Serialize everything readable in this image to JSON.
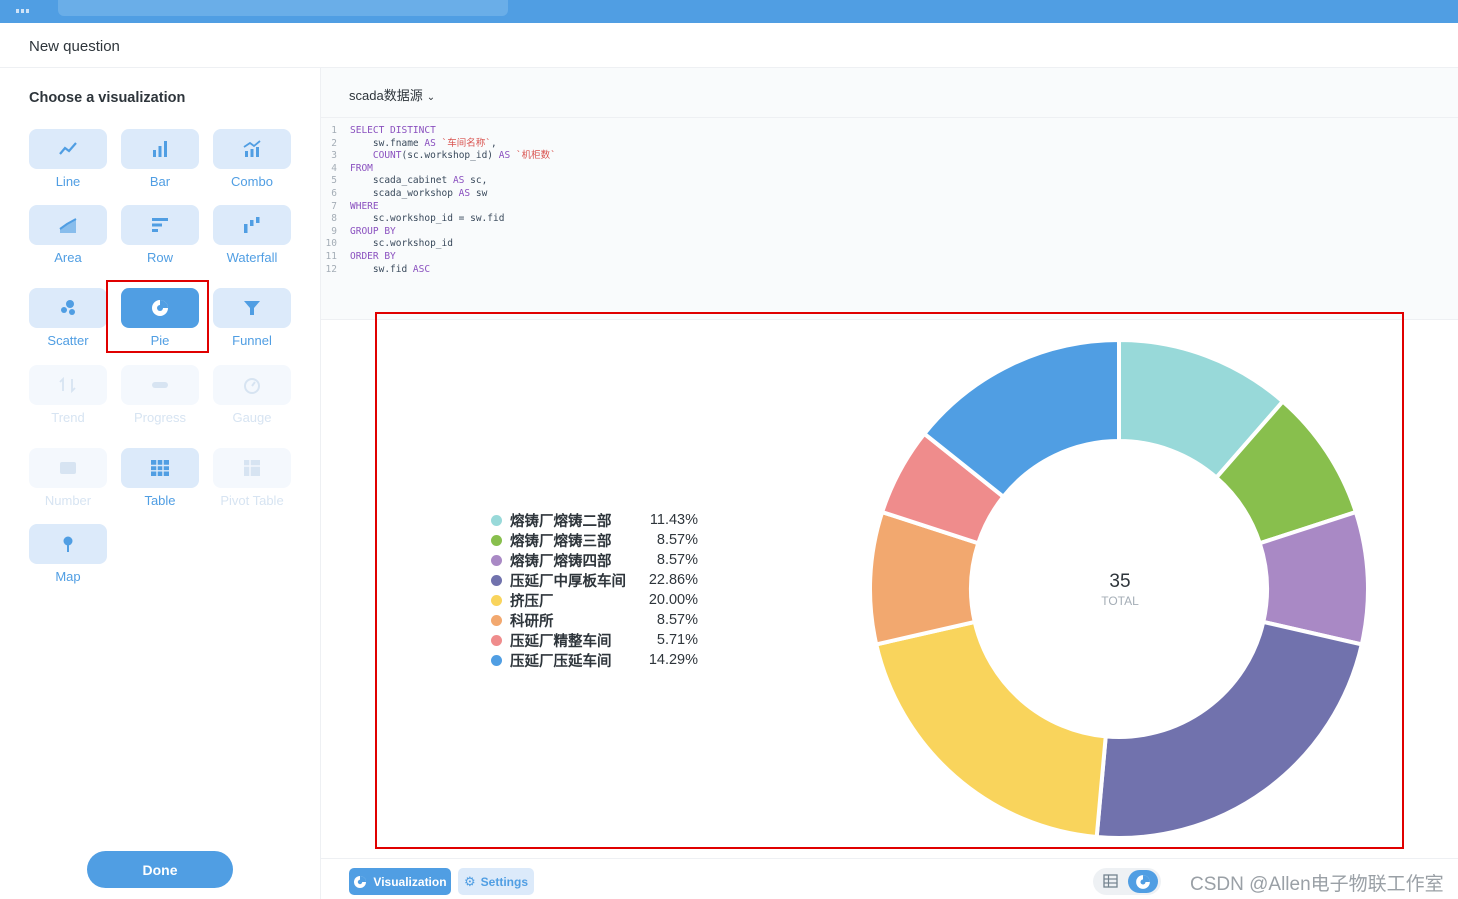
{
  "header": {
    "title": "New question"
  },
  "sidebar": {
    "heading": "Choose a visualization",
    "done_label": "Done",
    "items": [
      {
        "label": "Line",
        "icon": "line-chart-icon",
        "state": "enabled"
      },
      {
        "label": "Bar",
        "icon": "bar-chart-icon",
        "state": "enabled"
      },
      {
        "label": "Combo",
        "icon": "combo-chart-icon",
        "state": "enabled"
      },
      {
        "label": "Area",
        "icon": "area-chart-icon",
        "state": "enabled"
      },
      {
        "label": "Row",
        "icon": "row-chart-icon",
        "state": "enabled"
      },
      {
        "label": "Waterfall",
        "icon": "waterfall-chart-icon",
        "state": "enabled"
      },
      {
        "label": "Scatter",
        "icon": "scatter-chart-icon",
        "state": "enabled"
      },
      {
        "label": "Pie",
        "icon": "pie-chart-icon",
        "state": "active"
      },
      {
        "label": "Funnel",
        "icon": "funnel-icon",
        "state": "enabled"
      },
      {
        "label": "Trend",
        "icon": "trend-icon",
        "state": "disabled"
      },
      {
        "label": "Progress",
        "icon": "progress-icon",
        "state": "disabled"
      },
      {
        "label": "Gauge",
        "icon": "gauge-icon",
        "state": "disabled"
      },
      {
        "label": "Number",
        "icon": "number-icon",
        "state": "disabled"
      },
      {
        "label": "Table",
        "icon": "table-icon",
        "state": "enabled"
      },
      {
        "label": "Pivot Table",
        "icon": "pivot-table-icon",
        "state": "disabled"
      },
      {
        "label": "Map",
        "icon": "map-pin-icon",
        "state": "enabled"
      }
    ]
  },
  "editor": {
    "database": "scada数据源",
    "lines": [
      {
        "n": "1",
        "text": "SELECT DISTINCT"
      },
      {
        "n": "2",
        "text": "    sw.fname AS `车间名称`,"
      },
      {
        "n": "3",
        "text": "    COUNT(sc.workshop_id) AS `机柜数`"
      },
      {
        "n": "4",
        "text": "FROM"
      },
      {
        "n": "5",
        "text": "    scada_cabinet AS sc,"
      },
      {
        "n": "6",
        "text": "    scada_workshop AS sw"
      },
      {
        "n": "7",
        "text": "WHERE"
      },
      {
        "n": "8",
        "text": "    sc.workshop_id = sw.fid"
      },
      {
        "n": "9",
        "text": "GROUP BY"
      },
      {
        "n": "10",
        "text": "    sc.workshop_id"
      },
      {
        "n": "11",
        "text": "ORDER BY"
      },
      {
        "n": "12",
        "text": "    sw.fid ASC"
      }
    ]
  },
  "chart_data": {
    "type": "pie",
    "style": "donut",
    "total": 35,
    "total_label": "TOTAL",
    "legend_position": "left",
    "slices": [
      {
        "name": "熔铸厂熔铸二部",
        "percent": "11.43%",
        "value": 4,
        "color": "#98d9d9"
      },
      {
        "name": "熔铸厂熔铸三部",
        "percent": "8.57%",
        "value": 3,
        "color": "#88bf4d"
      },
      {
        "name": "熔铸厂熔铸四部",
        "percent": "8.57%",
        "value": 3,
        "color": "#a989c5"
      },
      {
        "name": "压延厂中厚板车间",
        "percent": "22.86%",
        "value": 8,
        "color": "#7172ad"
      },
      {
        "name": "挤压厂",
        "percent": "20.00%",
        "value": 7,
        "color": "#f9d45c"
      },
      {
        "name": "科研所",
        "percent": "8.57%",
        "value": 3,
        "color": "#f2a86f"
      },
      {
        "name": "压延厂精整车间",
        "percent": "5.71%",
        "value": 2,
        "color": "#ef8c8c"
      },
      {
        "name": "压延厂压延车间",
        "percent": "14.29%",
        "value": 5,
        "color": "#509ee3"
      }
    ]
  },
  "footer": {
    "visualization_label": "Visualization",
    "settings_label": "Settings"
  },
  "watermark": "CSDN @Allen电子物联工作室"
}
